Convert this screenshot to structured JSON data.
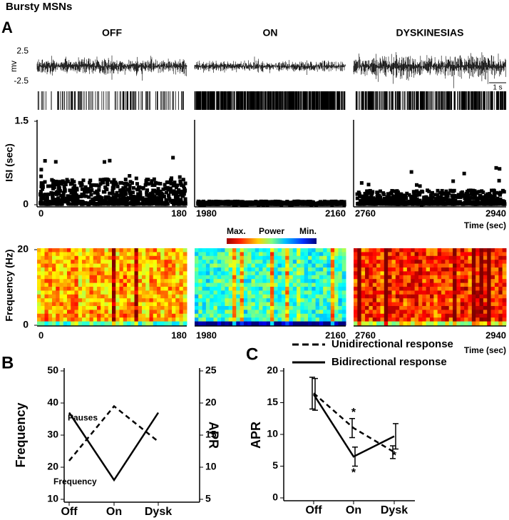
{
  "title": "Bursty MSNs",
  "panel_a": {
    "label": "A",
    "columns": [
      {
        "title": "OFF",
        "xticks": [
          0,
          180
        ]
      },
      {
        "title": "ON",
        "xticks": [
          1980,
          2160
        ]
      },
      {
        "title": "DYSKINESIAS",
        "xticks": [
          2760,
          2940
        ]
      }
    ],
    "trace_ylabel": "mv",
    "trace_yticks": [
      2.5,
      -2.5
    ],
    "scale_bar": "1 s",
    "isi_ylabel": "ISI (sec)",
    "isi_ylim": [
      0,
      1.5
    ],
    "isi_yticks": [
      0,
      1.5
    ],
    "time_label": "Time (sec)",
    "colorbar": [
      "Max.",
      "Power",
      "Min."
    ],
    "spec_ylabel": "Frequency (Hz)",
    "spec_ylim": [
      0,
      20
    ],
    "spec_yticks": [
      0,
      20
    ]
  },
  "chart_data": [
    {
      "type": "line",
      "panel_label": "B",
      "categories": [
        "Off",
        "On",
        "Dysk"
      ],
      "ylabel": "Frequency",
      "y2label": "APR",
      "ylim": [
        10,
        50
      ],
      "yticks": [
        10,
        20,
        30,
        40,
        50
      ],
      "y2lim": [
        5,
        25
      ],
      "y2ticks": [
        5,
        10,
        15,
        20,
        25
      ],
      "series": [
        {
          "name": "Frequency",
          "color": "#000000",
          "dashed": true,
          "values": [
            22,
            39,
            28
          ]
        },
        {
          "name": "Pauses",
          "color": "#000000",
          "axis": "y2",
          "values": [
            18.5,
            8,
            18.5
          ]
        }
      ]
    },
    {
      "type": "line",
      "panel_label": "C",
      "categories": [
        "Off",
        "On",
        "Dysk"
      ],
      "ylabel": "APR",
      "ylim": [
        0,
        20
      ],
      "yticks": [
        0,
        5,
        10,
        15,
        20
      ],
      "legend": "top",
      "series": [
        {
          "name": "Unidirectional response",
          "color": "#000000",
          "dashed": true,
          "values": [
            16.5,
            11,
            7.2
          ],
          "errors": [
            2.5,
            1.5,
            1
          ],
          "markers": [
            null,
            "*",
            null
          ]
        },
        {
          "name": "Bidirectional response",
          "color": "#000000",
          "values": [
            16.3,
            6.5,
            9.7
          ],
          "errors": [
            2.5,
            1.5,
            2
          ],
          "markers": [
            null,
            "*",
            "*"
          ]
        }
      ]
    }
  ]
}
